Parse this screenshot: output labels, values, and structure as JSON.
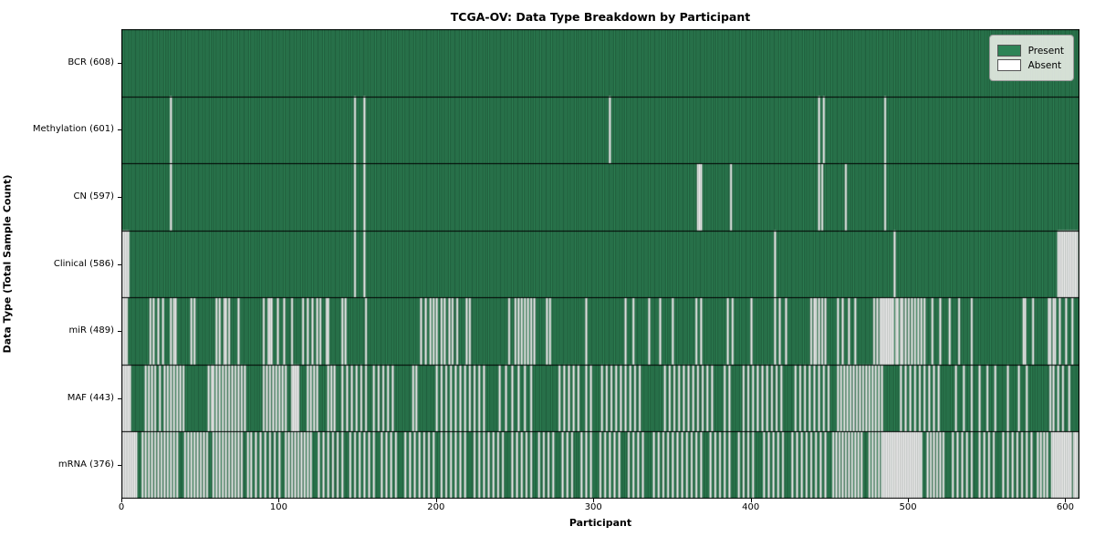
{
  "chart_data": {
    "type": "heatmap",
    "title": "TCGA-OV: Data Type Breakdown by Participant",
    "xlabel": "Participant",
    "ylabel": "Data Type (Total Sample Count)",
    "x_ticks": [
      0,
      100,
      200,
      300,
      400,
      500,
      600
    ],
    "xlim": [
      0,
      609
    ],
    "n_participants": 608,
    "grid": false,
    "legend_position": "upper right",
    "legend": [
      {
        "label": "Present",
        "color": "#2e8456"
      },
      {
        "label": "Absent",
        "color": "#ffffff"
      }
    ],
    "colors": {
      "present": "#2e8456",
      "absent": "#ffffff",
      "bar_edge": "rgba(0,0,0,0.5)",
      "absent_edge": "#b0b0b0",
      "row_separator": "#000000",
      "frame": "#000000"
    },
    "rows": [
      {
        "label": "BCR (608)",
        "name": "BCR",
        "present_count": 608,
        "absent": []
      },
      {
        "label": "Methylation (601)",
        "name": "Methylation",
        "present_count": 601,
        "absent": [
          31,
          148,
          154,
          310,
          443,
          446,
          485
        ]
      },
      {
        "label": "CN (597)",
        "name": "CN",
        "present_count": 597,
        "absent": [
          31,
          148,
          154,
          366,
          367,
          368,
          387,
          443,
          445,
          460,
          485
        ]
      },
      {
        "label": "Clinical (586)",
        "name": "Clinical",
        "present_count": 586,
        "absent": [
          0,
          1,
          2,
          3,
          4,
          148,
          154,
          415,
          491,
          595,
          596,
          597,
          598,
          599,
          600,
          601,
          602,
          603,
          604,
          605,
          606,
          607
        ]
      },
      {
        "label": "miR (489)",
        "name": "miR",
        "present_count": 489,
        "absent": [
          0,
          1,
          2,
          3,
          18,
          20,
          23,
          26,
          31,
          33,
          34,
          44,
          46,
          60,
          62,
          65,
          66,
          68,
          74,
          90,
          93,
          94,
          95,
          99,
          103,
          108,
          115,
          118,
          121,
          124,
          126,
          130,
          131,
          140,
          142,
          155,
          190,
          193,
          196,
          198,
          200,
          203,
          205,
          208,
          210,
          213,
          219,
          221,
          246,
          250,
          252,
          254,
          256,
          258,
          260,
          262,
          270,
          272,
          295,
          320,
          325,
          335,
          342,
          350,
          365,
          368,
          385,
          388,
          400,
          415,
          418,
          422,
          438,
          440,
          441,
          443,
          445,
          447,
          455,
          458,
          462,
          466,
          478,
          480,
          482,
          483,
          484,
          485,
          486,
          487,
          488,
          489,
          490,
          492,
          493,
          495,
          496,
          498,
          500,
          502,
          504,
          506,
          508,
          510,
          515,
          520,
          526,
          532,
          540,
          573,
          574,
          579,
          589,
          590,
          592,
          593,
          596,
          600,
          604
        ]
      },
      {
        "label": "MAF (443)",
        "name": "MAF",
        "present_count": 443,
        "absent": [
          0,
          1,
          2,
          3,
          4,
          5,
          15,
          17,
          19,
          21,
          24,
          27,
          29,
          31,
          33,
          35,
          37,
          39,
          55,
          57,
          58,
          60,
          62,
          64,
          66,
          68,
          70,
          72,
          74,
          76,
          78,
          90,
          92,
          94,
          96,
          98,
          100,
          102,
          104,
          108,
          109,
          110,
          111,
          112,
          118,
          120,
          122,
          124,
          131,
          133,
          135,
          140,
          143,
          146,
          149,
          152,
          155,
          160,
          163,
          166,
          169,
          172,
          185,
          187,
          200,
          203,
          206,
          209,
          212,
          215,
          218,
          221,
          224,
          227,
          230,
          240,
          244,
          248,
          252,
          256,
          260,
          278,
          281,
          284,
          287,
          290,
          295,
          298,
          305,
          308,
          311,
          314,
          317,
          320,
          323,
          326,
          329,
          345,
          348,
          351,
          354,
          357,
          360,
          363,
          366,
          369,
          372,
          375,
          383,
          386,
          395,
          398,
          401,
          404,
          407,
          410,
          413,
          416,
          419,
          428,
          431,
          434,
          437,
          440,
          443,
          446,
          449,
          455,
          457,
          459,
          461,
          463,
          465,
          467,
          469,
          471,
          473,
          475,
          477,
          479,
          481,
          483,
          495,
          498,
          501,
          504,
          507,
          510,
          513,
          516,
          519,
          530,
          535,
          540,
          545,
          550,
          555,
          563,
          570,
          575,
          590,
          592,
          595,
          598,
          602
        ]
      },
      {
        "label": "mRNA (376)",
        "name": "mRNA",
        "present_count": 376,
        "absent": [
          0,
          1,
          2,
          3,
          4,
          5,
          6,
          7,
          8,
          9,
          13,
          15,
          17,
          19,
          21,
          23,
          25,
          27,
          29,
          31,
          33,
          35,
          40,
          42,
          44,
          46,
          48,
          50,
          52,
          54,
          58,
          60,
          62,
          64,
          66,
          68,
          70,
          72,
          74,
          76,
          80,
          82,
          85,
          88,
          91,
          94,
          97,
          100,
          104,
          106,
          108,
          110,
          112,
          114,
          116,
          118,
          120,
          125,
          128,
          131,
          134,
          137,
          140,
          145,
          148,
          151,
          154,
          157,
          160,
          165,
          168,
          171,
          174,
          180,
          183,
          186,
          189,
          192,
          195,
          198,
          203,
          206,
          209,
          212,
          215,
          218,
          224,
          227,
          230,
          233,
          236,
          239,
          242,
          248,
          251,
          254,
          257,
          260,
          265,
          268,
          271,
          274,
          280,
          283,
          286,
          292,
          295,
          298,
          304,
          307,
          310,
          313,
          316,
          322,
          325,
          328,
          331,
          338,
          341,
          344,
          347,
          350,
          353,
          356,
          359,
          362,
          365,
          368,
          374,
          377,
          380,
          383,
          386,
          392,
          395,
          398,
          401,
          408,
          411,
          414,
          417,
          420,
          426,
          429,
          432,
          435,
          438,
          441,
          444,
          447,
          452,
          454,
          456,
          458,
          460,
          462,
          464,
          466,
          468,
          470,
          475,
          477,
          479,
          481,
          483,
          484,
          485,
          486,
          487,
          488,
          489,
          490,
          491,
          492,
          493,
          494,
          495,
          496,
          497,
          498,
          499,
          500,
          501,
          502,
          503,
          504,
          505,
          506,
          507,
          508,
          512,
          514,
          516,
          518,
          520,
          522,
          528,
          531,
          534,
          537,
          540,
          545,
          548,
          551,
          554,
          560,
          563,
          566,
          569,
          572,
          575,
          578,
          582,
          584,
          586,
          588,
          591,
          592,
          593,
          594,
          595,
          596,
          597,
          598,
          599,
          600,
          601,
          602,
          603,
          605,
          606,
          607
        ]
      }
    ]
  }
}
